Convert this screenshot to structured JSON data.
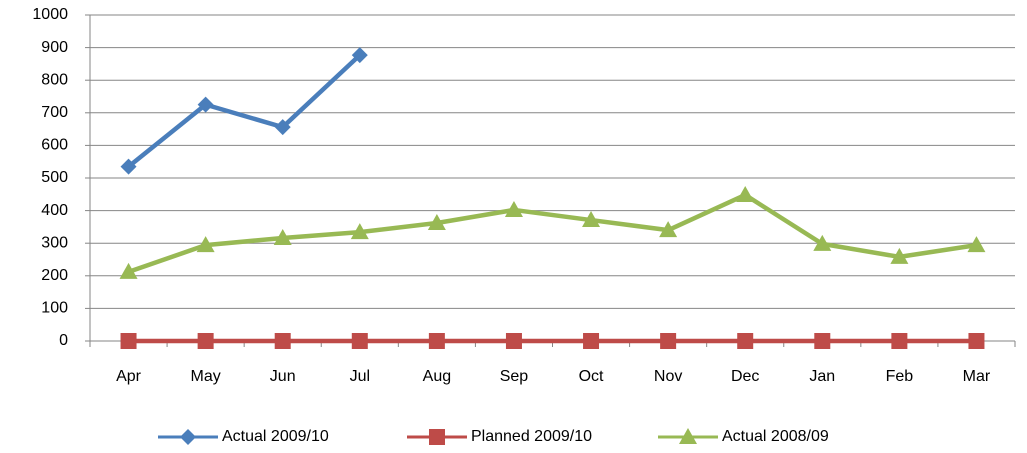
{
  "chart_data": {
    "type": "line",
    "categories": [
      "Apr",
      "May",
      "Jun",
      "Jul",
      "Aug",
      "Sep",
      "Oct",
      "Nov",
      "Dec",
      "Jan",
      "Feb",
      "Mar"
    ],
    "series": [
      {
        "name": "Actual 2009/10",
        "color": "#4a7ebb",
        "marker": "diamond",
        "values": [
          535,
          725,
          656,
          877,
          null,
          null,
          null,
          null,
          null,
          null,
          null,
          null
        ]
      },
      {
        "name": "Planned 2009/10",
        "color": "#be4b48",
        "marker": "square",
        "values": [
          0,
          0,
          0,
          0,
          0,
          0,
          0,
          0,
          0,
          0,
          0,
          0
        ]
      },
      {
        "name": "Actual 2008/09",
        "color": "#98b954",
        "marker": "triangle",
        "values": [
          212,
          294,
          316,
          334,
          362,
          402,
          371,
          340,
          448,
          298,
          258,
          294
        ]
      }
    ],
    "ylim": [
      0,
      1000
    ],
    "yticks": [
      0,
      100,
      200,
      300,
      400,
      500,
      600,
      700,
      800,
      900,
      1000
    ],
    "grid": true,
    "legend": "bottom"
  }
}
